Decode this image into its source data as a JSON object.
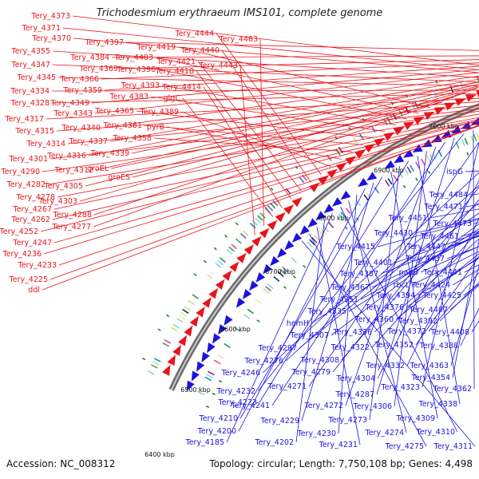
{
  "title": "Trichodesmium erythraeum IMS101, complete genome",
  "accession": "Accession: NC_008312",
  "stats": "Topology: circular; Length: 7,750,108 bp; Genes: 4,498",
  "colors": {
    "forward": "#e8141b",
    "reverse": "#1b12e0",
    "backbone": "#888888",
    "tick": "#1c8a2a"
  },
  "scale_labels": [
    "7000 kbp",
    "6900 kbp",
    "6800 kbp",
    "6700 kbp",
    "6600 kbp",
    "6500 kbp",
    "6400 kbp"
  ],
  "forward_genes": [
    "Tery_4373",
    "Tery_4371",
    "Tery_4370",
    "Tery_4355",
    "Tery_4347",
    "Tery_4345",
    "Tery_4334",
    "Tery_4328",
    "Tery_4317",
    "Tery_4315",
    "Tery_4314",
    "Tery_4301",
    "Tery_4290",
    "Tery_4282",
    "Tery_4278",
    "Tery_4267",
    "Tery_4262",
    "Tery_4252",
    "Tery_4247",
    "Tery_4236",
    "Tery_4233",
    "Tery_4225",
    "ddl",
    "Tery_4397",
    "Tery_4384",
    "Tery_4369",
    "Tery_4366",
    "Tery_4359",
    "Tery_4349",
    "Tery_4343",
    "Tery_4340",
    "Tery_4337",
    "Tery_4339",
    "Tery_4316",
    "Tery_4312",
    "Tery_4305",
    "Tery_4303",
    "Tery_4288",
    "Tery_4277",
    "groEL",
    "groES",
    "Tery_4419",
    "Tery_4403",
    "Tery_4396",
    "Tery_4393",
    "Tery_4383",
    "Tery_4365",
    "Tery_4361",
    "Tery_4358",
    "pyrB",
    "Tery_4389",
    "Tery_4444",
    "Tery_4440",
    "Tery_4421",
    "Tery_4418",
    "Tery_4414",
    "glgC",
    "Tery_4463",
    "Tery_4443"
  ],
  "reverse_genes": [
    "ispG",
    "Tery_4484",
    "Tery_4471",
    "Tery_4451",
    "Tery_4473",
    "Tery_4430",
    "Tery_4461",
    "Tery_4415",
    "Tery_4447",
    "Tery_4437",
    "Tery_4401",
    "Tery_4387",
    "panB",
    "Tery_4441",
    "rbcL",
    "Tery_4424",
    "Tery_4367",
    "Tery_4394",
    "Tery_4425",
    "Tery_4351",
    "Tery_4376",
    "Tery_4407",
    "Tery_4335",
    "Tery_4360",
    "Tery_4392",
    "hemH",
    "Tery_4307",
    "Tery_4336",
    "Tery_4372",
    "Tery_4408",
    "Tery_4297",
    "Tery_4322",
    "Tery_4352",
    "Tery_4388",
    "Tery_4276",
    "Tery_4308",
    "Tery_4246",
    "Tery_4279",
    "Tery_4332",
    "Tery_4363",
    "Tery_4304",
    "Tery_4354",
    "Tery_4271",
    "Tery_4323",
    "Tery_4362",
    "Tery_4232",
    "Tery_4287",
    "Tery_4241",
    "Tery_4272",
    "Tery_4306",
    "Tery_4338",
    "Tery_4223",
    "Tery_4273",
    "Tery_4309",
    "Tery_4210",
    "Tery_4229",
    "Tery_4200",
    "Tery_4230",
    "Tery_4274",
    "Tery_4310",
    "Tery_4185",
    "Tery_4202",
    "Tery_4231",
    "Tery_4275",
    "Tery_4311"
  ]
}
